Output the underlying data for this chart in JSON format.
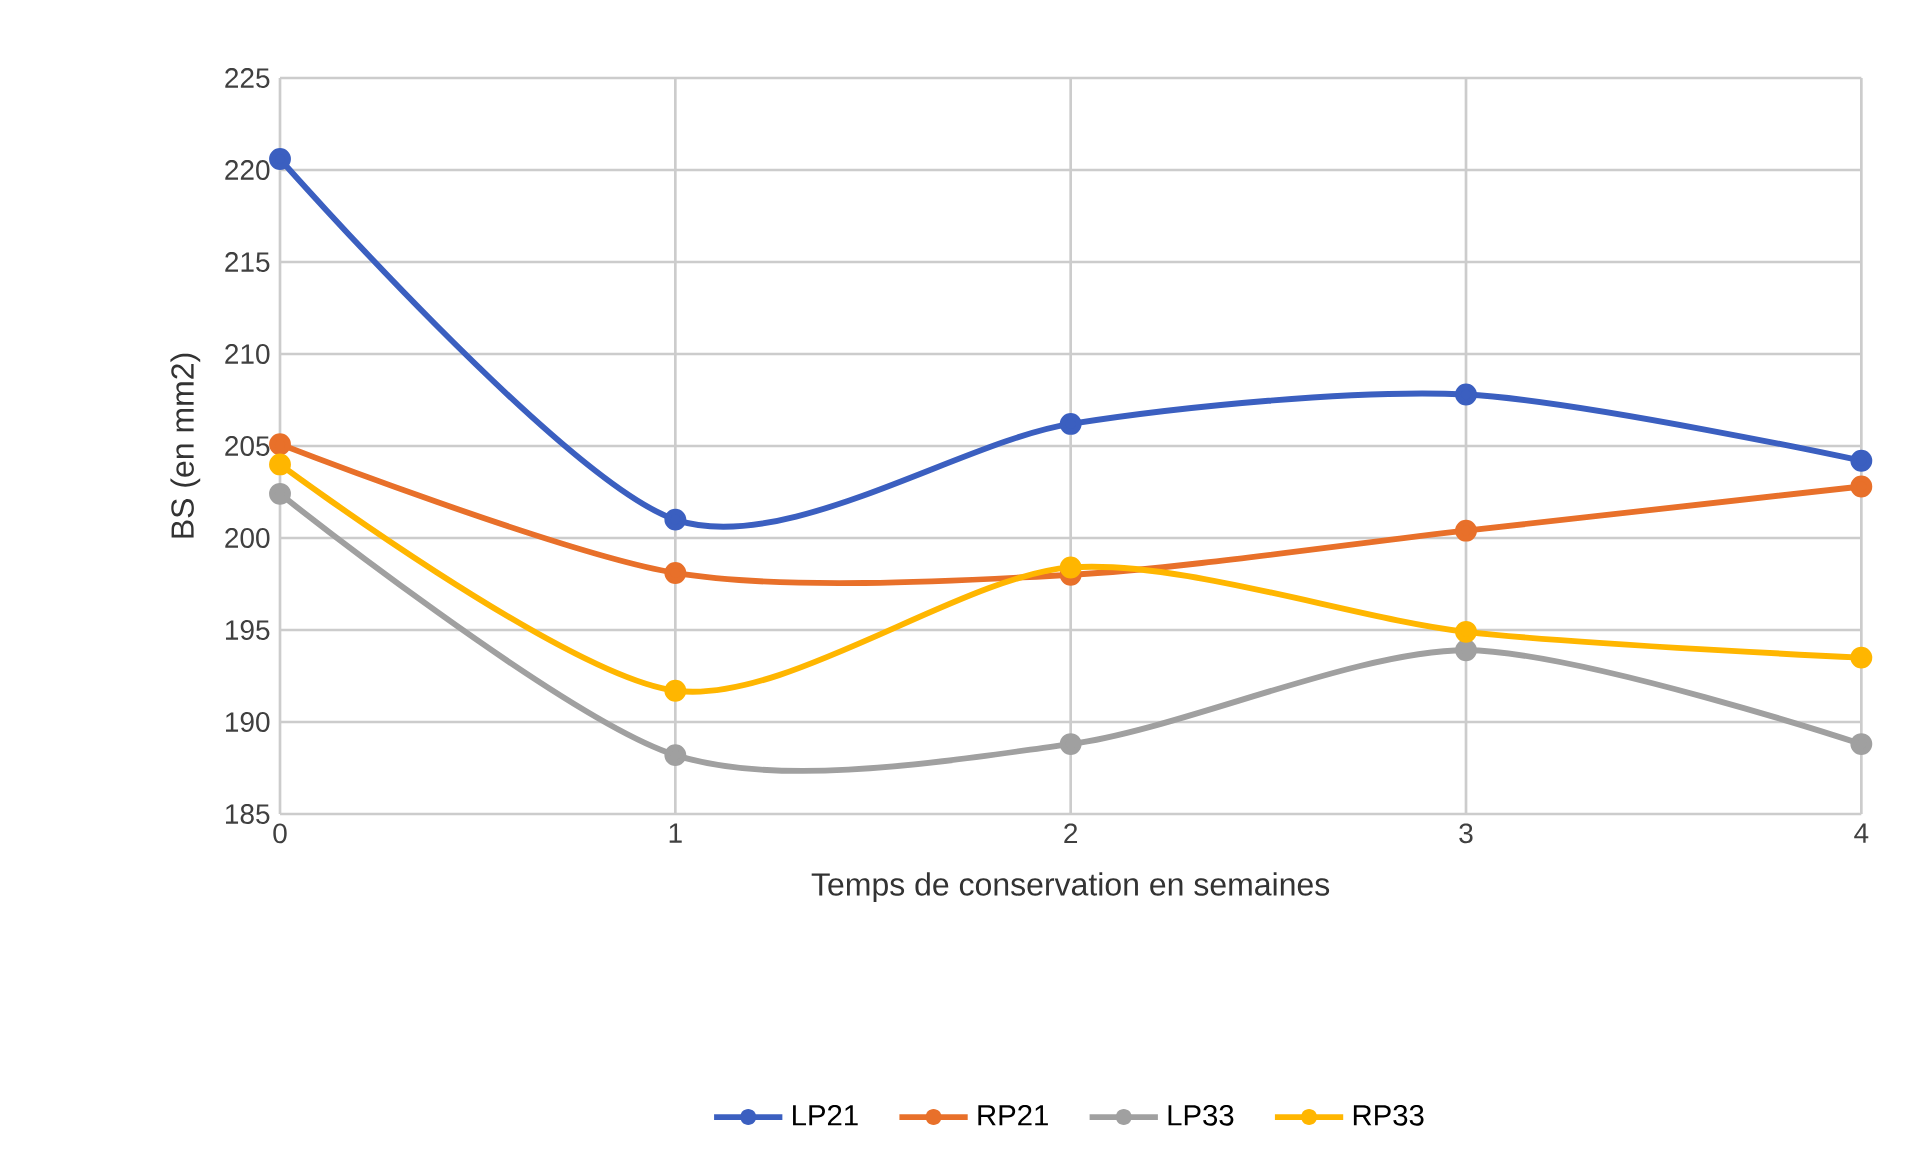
{
  "chart_data": {
    "type": "line",
    "xlabel": "Temps de conservation en semaines",
    "ylabel": "BS (en mm2)",
    "x": [
      0,
      1,
      2,
      3,
      4
    ],
    "xlim": [
      0,
      4
    ],
    "xticks": [
      0,
      1,
      2,
      3,
      4
    ],
    "ylim": [
      185,
      225
    ],
    "yticks": [
      185,
      190,
      195,
      200,
      205,
      210,
      215,
      220,
      225
    ],
    "grid": true,
    "legend": "bottom",
    "marker": "circle",
    "line_style": "solid",
    "series": [
      {
        "name": "LP21",
        "color": "#3b5fc0",
        "values": [
          220.6,
          201.0,
          206.2,
          207.8,
          204.2
        ]
      },
      {
        "name": "RP21",
        "color": "#e8702a",
        "values": [
          205.1,
          198.1,
          198.0,
          200.4,
          202.8
        ]
      },
      {
        "name": "LP33",
        "color": "#a0a0a0",
        "values": [
          202.4,
          188.2,
          188.8,
          193.9,
          188.8
        ]
      },
      {
        "name": "RP33",
        "color": "#ffb600",
        "values": [
          204.0,
          191.7,
          198.4,
          194.9,
          193.5
        ]
      }
    ]
  }
}
